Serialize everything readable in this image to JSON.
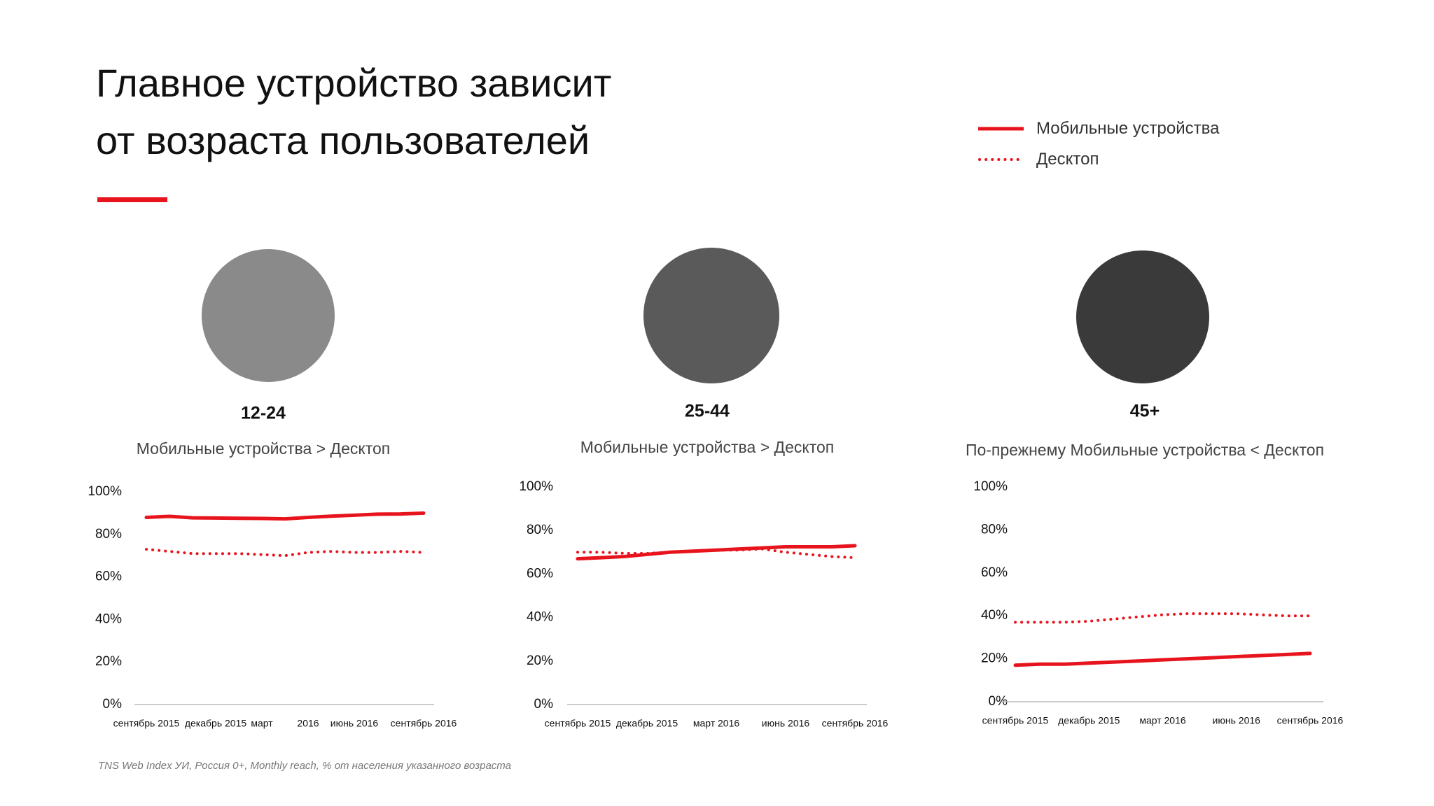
{
  "title": "Главное устройство зависит от возраста пользователей",
  "footnote": "TNS Web Index УИ, Россия 0+, Monthly reach, % от населения указанного возраста",
  "chart_data": [
    {
      "type": "line",
      "heading": "12-24",
      "subtitle": "Мобильные устройства > Десктоп",
      "categories": [
        "сентябрь 2015",
        null,
        null,
        "декабрь 2015",
        null,
        "март",
        null,
        "2016",
        null,
        "июнь 2016",
        null,
        null,
        "сентябрь 2016"
      ],
      "series": [
        {
          "name": "Мобильные устройства",
          "color": "#e8141d",
          "style": "solid",
          "values": [
            88,
            88.5,
            87.8,
            87.7,
            87.6,
            87.5,
            87.3,
            88,
            88.6,
            89,
            89.5,
            89.6,
            90
          ]
        },
        {
          "name": "Десктоп",
          "color": "#e8141d",
          "style": "dotted",
          "values": [
            73,
            72,
            71,
            71,
            71,
            70.5,
            70,
            71.5,
            72,
            71.5,
            71.5,
            72,
            71.5
          ]
        }
      ],
      "ylim": [
        0,
        100
      ],
      "yticks": [
        {
          "value": 0,
          "label": "0%"
        },
        {
          "value": 20,
          "label": "20%"
        },
        {
          "value": 40,
          "label": "40%"
        },
        {
          "value": 60,
          "label": "60%"
        },
        {
          "value": 80,
          "label": "80%"
        },
        {
          "value": 100,
          "label": "100%"
        }
      ]
    },
    {
      "type": "line",
      "heading": "25-44",
      "subtitle": "Мобильные устройства > Десктоп",
      "categories": [
        "сентябрь 2015",
        null,
        null,
        "декабрь 2015",
        null,
        null,
        "март 2016",
        null,
        null,
        "июнь 2016",
        null,
        null,
        "сентябрь 2016"
      ],
      "series": [
        {
          "name": "Мобильные устройства",
          "color": "#e8141d",
          "style": "solid",
          "values": [
            67,
            67.5,
            68,
            69,
            70,
            70.5,
            71,
            71.5,
            72,
            72.5,
            72.5,
            72.5,
            73
          ]
        },
        {
          "name": "Десктоп",
          "color": "#e8141d",
          "style": "dotted",
          "values": [
            70,
            70,
            69.5,
            69.5,
            70,
            70.5,
            71,
            71,
            71.5,
            70,
            69,
            68,
            67.5
          ]
        }
      ],
      "ylim": [
        0,
        100
      ],
      "yticks": [
        {
          "value": 0,
          "label": "0%"
        },
        {
          "value": 20,
          "label": "20%"
        },
        {
          "value": 40,
          "label": "40%"
        },
        {
          "value": 60,
          "label": "60%"
        },
        {
          "value": 80,
          "label": "80%"
        },
        {
          "value": 100,
          "label": "100%"
        }
      ]
    },
    {
      "type": "line",
      "heading": "45+",
      "subtitle": "По-прежнему Мобильные устройства < Десктоп",
      "categories": [
        "сентябрь 2015",
        null,
        null,
        "декабрь 2015",
        null,
        null,
        "март 2016",
        null,
        null,
        "июнь 2016",
        null,
        null,
        "сентябрь 2016"
      ],
      "series": [
        {
          "name": "Мобильные устройства",
          "color": "#e8141d",
          "style": "solid",
          "values": [
            17,
            17.5,
            17.5,
            18,
            18.5,
            19,
            19.5,
            20,
            20.5,
            21,
            21.5,
            22,
            22.5
          ]
        },
        {
          "name": "Десктоп",
          "color": "#e8141d",
          "style": "dotted",
          "values": [
            37,
            37,
            37,
            37.5,
            38.5,
            39.5,
            40.5,
            41,
            41,
            41,
            40.5,
            40,
            40
          ]
        }
      ],
      "ylim": [
        0,
        100
      ],
      "yticks": [
        {
          "value": 0,
          "label": "0%"
        },
        {
          "value": 20,
          "label": "20%"
        },
        {
          "value": 40,
          "label": "40%"
        },
        {
          "value": 60,
          "label": "60%"
        },
        {
          "value": 80,
          "label": "80%"
        },
        {
          "value": 100,
          "label": "100%"
        }
      ]
    }
  ]
}
